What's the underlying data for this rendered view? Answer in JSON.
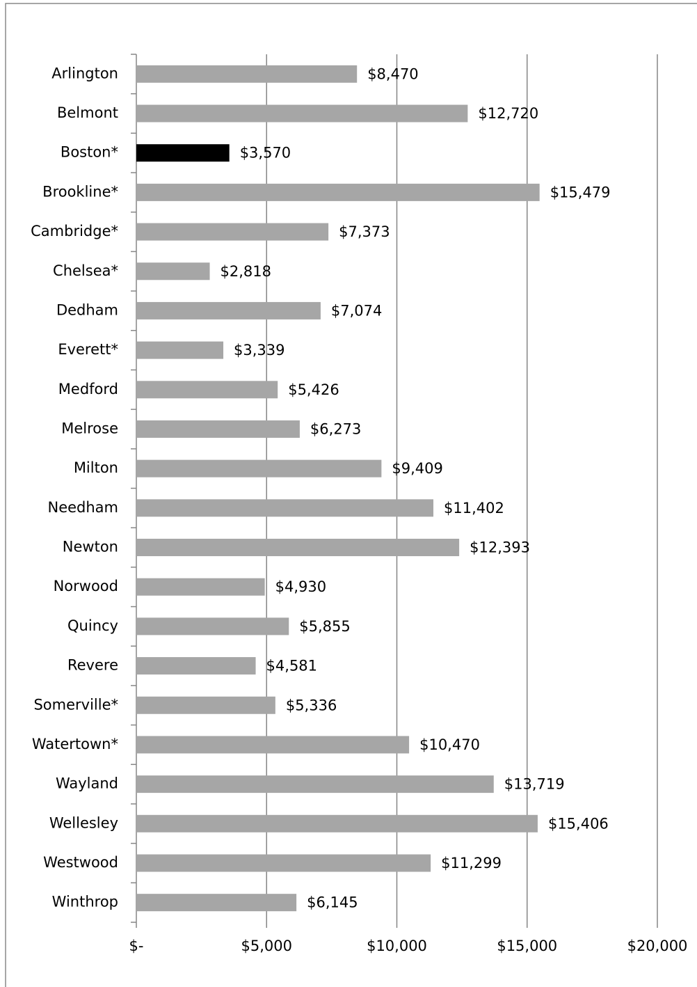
{
  "chart_data": {
    "type": "bar",
    "orientation": "horizontal",
    "categories": [
      "Arlington",
      "Belmont",
      "Boston*",
      "Brookline*",
      "Cambridge*",
      "Chelsea*",
      "Dedham",
      "Everett*",
      "Medford",
      "Melrose",
      "Milton",
      "Needham",
      "Newton",
      "Norwood",
      "Quincy",
      "Revere",
      "Somerville*",
      "Watertown*",
      "Wayland",
      "Wellesley",
      "Westwood",
      "Winthrop"
    ],
    "values": [
      8470,
      12720,
      3570,
      15479,
      7373,
      2818,
      7074,
      3339,
      5426,
      6273,
      9409,
      11402,
      12393,
      4930,
      5855,
      4581,
      5336,
      10470,
      13719,
      15406,
      11299,
      6145
    ],
    "value_labels": [
      "$8,470",
      "$12,720",
      "$3,570",
      "$15,479",
      "$7,373",
      "$2,818",
      "$7,074",
      "$3,339",
      "$5,426",
      "$6,273",
      "$9,409",
      "$11,402",
      "$12,393",
      "$4,930",
      "$5,855",
      "$4,581",
      "$5,336",
      "$10,470",
      "$13,719",
      "$15,406",
      "$11,299",
      "$6,145"
    ],
    "colors": [
      "#a6a6a6",
      "#a6a6a6",
      "#000000",
      "#a6a6a6",
      "#a6a6a6",
      "#a6a6a6",
      "#a6a6a6",
      "#a6a6a6",
      "#a6a6a6",
      "#a6a6a6",
      "#a6a6a6",
      "#a6a6a6",
      "#a6a6a6",
      "#a6a6a6",
      "#a6a6a6",
      "#a6a6a6",
      "#a6a6a6",
      "#a6a6a6",
      "#a6a6a6",
      "#a6a6a6",
      "#a6a6a6",
      "#a6a6a6"
    ],
    "xlim": [
      0,
      20000
    ],
    "xticks": [
      {
        "value": 0,
        "label": "$-"
      },
      {
        "value": 5000,
        "label": "$5,000"
      },
      {
        "value": 10000,
        "label": "$10,000"
      },
      {
        "value": 15000,
        "label": "$15,000"
      },
      {
        "value": 20000,
        "label": "$20,000"
      }
    ],
    "grid": true
  }
}
